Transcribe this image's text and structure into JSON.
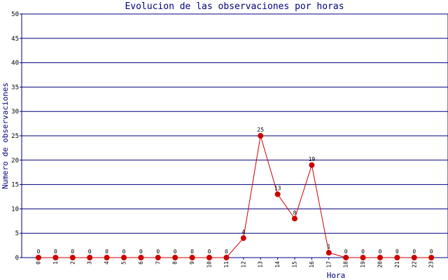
{
  "chart_data": {
    "type": "line",
    "title": "Evolucion de las observaciones por horas",
    "xlabel": "Hora",
    "ylabel": "Numero de observaciones",
    "categories": [
      "0",
      "1",
      "2",
      "3",
      "4",
      "5",
      "6",
      "7",
      "8",
      "9",
      "10",
      "11",
      "12",
      "13",
      "14",
      "15",
      "16",
      "17",
      "18",
      "19",
      "20",
      "21",
      "22",
      "23"
    ],
    "series": [
      {
        "values": [
          0,
          0,
          0,
          0,
          0,
          0,
          0,
          0,
          0,
          0,
          0,
          0,
          4,
          25,
          13,
          8,
          19,
          1,
          0,
          0,
          0,
          0,
          0,
          0
        ]
      }
    ],
    "ylim": [
      0,
      50
    ],
    "yticks": [
      0,
      5,
      10,
      15,
      20,
      25,
      30,
      35,
      40,
      45,
      50
    ],
    "grid": true,
    "data_labels": true,
    "legend": "none",
    "colors": {
      "line": "#cc0000",
      "marker": "#cc0000",
      "grid": "#00007f",
      "frame": "#00007f",
      "title": "#00007f",
      "axis_label": "#00007f"
    }
  }
}
